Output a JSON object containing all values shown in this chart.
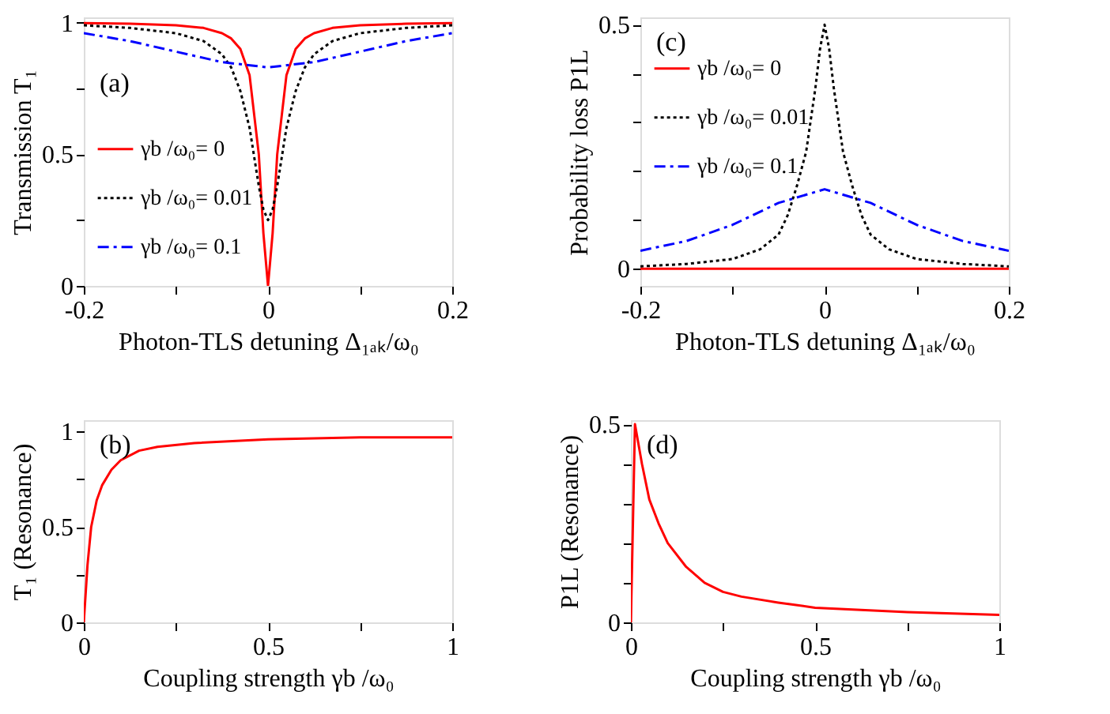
{
  "chart_data": [
    {
      "type": "line",
      "ylabel": "Transmission T₁",
      "xlabel": "Photon-TLS detuning Δ₁ₐₖ/ω₀",
      "annotations": [
        "(a)"
      ],
      "xlim": [
        -0.2,
        0.2
      ],
      "ylim": [
        0,
        1.02
      ],
      "xticks": [
        -0.2,
        {
          "value": -0.1,
          "label": null
        },
        0,
        {
          "value": 0.1,
          "label": null
        },
        0.2
      ],
      "yticks": [
        0,
        {
          "value": 0.25,
          "label": null
        },
        0.5,
        {
          "value": 0.75,
          "label": null
        },
        1
      ],
      "grid": false,
      "legend": "left",
      "marker": "none",
      "series": [
        {
          "name": "γb /ω₀= 0",
          "color": "#ff0000",
          "line_style": "solid",
          "x": [
            -0.2,
            -0.15,
            -0.1,
            -0.07,
            -0.05,
            -0.04,
            -0.03,
            -0.02,
            -0.01,
            -0.005,
            0,
            0.005,
            0.01,
            0.02,
            0.03,
            0.04,
            0.05,
            0.07,
            0.1,
            0.15,
            0.2
          ],
          "values": [
            0.998,
            0.996,
            0.99,
            0.98,
            0.96,
            0.94,
            0.9,
            0.8,
            0.5,
            0.2,
            0,
            0.2,
            0.5,
            0.8,
            0.9,
            0.94,
            0.96,
            0.98,
            0.99,
            0.996,
            0.998
          ]
        },
        {
          "name": "γb /ω₀= 0.01",
          "color": "#000000",
          "line_style": "dotted",
          "x": [
            -0.2,
            -0.15,
            -0.1,
            -0.07,
            -0.05,
            -0.04,
            -0.03,
            -0.02,
            -0.01,
            -0.005,
            0,
            0.005,
            0.01,
            0.02,
            0.03,
            0.04,
            0.05,
            0.07,
            0.1,
            0.15,
            0.2
          ],
          "values": [
            0.99,
            0.98,
            0.96,
            0.93,
            0.88,
            0.83,
            0.74,
            0.6,
            0.38,
            0.29,
            0.25,
            0.29,
            0.38,
            0.6,
            0.74,
            0.83,
            0.88,
            0.93,
            0.96,
            0.98,
            0.99
          ]
        },
        {
          "name": "γb /ω₀= 0.1",
          "color": "#0000ff",
          "line_style": "dashdot",
          "x": [
            -0.2,
            -0.15,
            -0.1,
            -0.05,
            0,
            0.05,
            0.1,
            0.15,
            0.2
          ],
          "values": [
            0.96,
            0.93,
            0.89,
            0.85,
            0.83,
            0.85,
            0.89,
            0.93,
            0.96
          ]
        }
      ]
    },
    {
      "type": "line",
      "ylabel": "Probability loss P1L",
      "xlabel": "Photon-TLS detuning Δ₁ₐₖ/ω₀",
      "annotations": [
        "(c)"
      ],
      "xlim": [
        -0.2,
        0.2
      ],
      "ylim": [
        -0.035,
        0.515
      ],
      "xticks": [
        -0.2,
        {
          "value": -0.1,
          "label": null
        },
        0,
        {
          "value": 0.1,
          "label": null
        },
        0.2
      ],
      "yticks": [
        0,
        {
          "value": 0.1,
          "label": null
        },
        {
          "value": 0.2,
          "label": null
        },
        {
          "value": 0.3,
          "label": null
        },
        {
          "value": 0.4,
          "label": null
        },
        0.5
      ],
      "grid": false,
      "legend": "top left",
      "marker": "none",
      "series": [
        {
          "name": "γb /ω₀= 0",
          "color": "#ff0000",
          "line_style": "solid",
          "x": [
            -0.2,
            0.2
          ],
          "values": [
            0,
            0
          ]
        },
        {
          "name": "γb /ω₀= 0.01",
          "color": "#000000",
          "line_style": "dotted",
          "x": [
            -0.2,
            -0.15,
            -0.1,
            -0.07,
            -0.05,
            -0.04,
            -0.03,
            -0.02,
            -0.01,
            -0.005,
            0,
            0.005,
            0.01,
            0.02,
            0.03,
            0.04,
            0.05,
            0.07,
            0.1,
            0.15,
            0.2
          ],
          "values": [
            0.005,
            0.01,
            0.02,
            0.04,
            0.07,
            0.11,
            0.17,
            0.24,
            0.37,
            0.45,
            0.5,
            0.45,
            0.37,
            0.24,
            0.17,
            0.11,
            0.07,
            0.04,
            0.02,
            0.01,
            0.005
          ]
        },
        {
          "name": "γb /ω₀= 0.1",
          "color": "#0000ff",
          "line_style": "dashdot",
          "x": [
            -0.2,
            -0.15,
            -0.1,
            -0.05,
            0,
            0.05,
            0.1,
            0.15,
            0.2
          ],
          "values": [
            0.037,
            0.057,
            0.09,
            0.135,
            0.163,
            0.135,
            0.09,
            0.057,
            0.037
          ]
        }
      ]
    },
    {
      "type": "line",
      "ylabel": "T₁ (Resonance)",
      "xlabel": "Coupling strength γb /ω₀",
      "annotations": [
        "(b)"
      ],
      "xlim": [
        0,
        1
      ],
      "ylim": [
        0,
        1.06
      ],
      "xticks": [
        0,
        {
          "value": 0.25,
          "label": null
        },
        0.5,
        {
          "value": 0.75,
          "label": null
        },
        1
      ],
      "yticks": [
        0,
        {
          "value": 0.25,
          "label": null
        },
        0.5,
        {
          "value": 0.75,
          "label": null
        },
        1
      ],
      "grid": false,
      "marker": "none",
      "series": [
        {
          "color": "#ff0000",
          "line_style": "solid",
          "x": [
            0,
            0.01,
            0.02,
            0.035,
            0.05,
            0.075,
            0.1,
            0.15,
            0.2,
            0.3,
            0.5,
            0.75,
            1
          ],
          "values": [
            0,
            0.3,
            0.5,
            0.64,
            0.72,
            0.8,
            0.85,
            0.9,
            0.92,
            0.94,
            0.96,
            0.97,
            0.97
          ]
        }
      ]
    },
    {
      "type": "line",
      "ylabel": "P1L (Resonance)",
      "xlabel": "Coupling strength γb /ω₀",
      "annotations": [
        "(d)"
      ],
      "xlim": [
        0,
        1
      ],
      "ylim": [
        0,
        0.51
      ],
      "xticks": [
        0,
        {
          "value": 0.25,
          "label": null
        },
        0.5,
        {
          "value": 0.75,
          "label": null
        },
        1
      ],
      "yticks": [
        0,
        {
          "value": 0.1,
          "label": null
        },
        {
          "value": 0.2,
          "label": null
        },
        {
          "value": 0.3,
          "label": null
        },
        {
          "value": 0.4,
          "label": null
        },
        0.5
      ],
      "grid": false,
      "marker": "none",
      "series": [
        {
          "color": "#ff0000",
          "line_style": "solid",
          "x": [
            0,
            0.011,
            0.03,
            0.05,
            0.075,
            0.1,
            0.15,
            0.2,
            0.25,
            0.3,
            0.4,
            0.5,
            0.75,
            1
          ],
          "values": [
            0,
            0.5,
            0.4,
            0.31,
            0.25,
            0.2,
            0.14,
            0.1,
            0.077,
            0.065,
            0.05,
            0.037,
            0.026,
            0.019
          ]
        }
      ]
    }
  ]
}
